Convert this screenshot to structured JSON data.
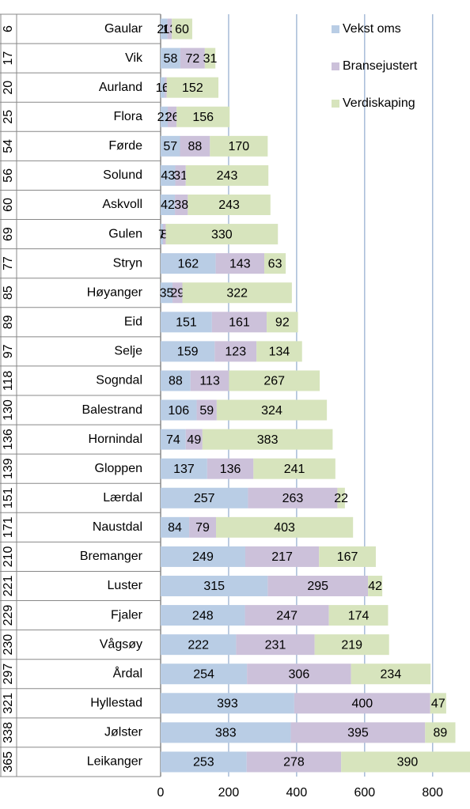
{
  "chart_data": {
    "type": "stacked-bar-horizontal",
    "categories": [
      "Gaular",
      "Vik",
      "Aurland",
      "Flora",
      "Førde",
      "Solund",
      "Askvoll",
      "Gulen",
      "Stryn",
      "Høyanger",
      "Eid",
      "Selje",
      "Sogndal",
      "Balestrand",
      "Hornindal",
      "Gloppen",
      "Lærdal",
      "Naustdal",
      "Bremanger",
      "Luster",
      "Fjaler",
      "Vågsøy",
      "Årdal",
      "Hyllestad",
      "Jølster",
      "Leikanger"
    ],
    "ranks": [
      6,
      17,
      20,
      25,
      54,
      56,
      60,
      69,
      77,
      85,
      89,
      97,
      118,
      130,
      136,
      139,
      151,
      171,
      210,
      221,
      229,
      230,
      297,
      321,
      338,
      365
    ],
    "series": [
      {
        "name": "Vekst oms",
        "color": "#b9cde5",
        "values": [
          20,
          58,
          12,
          21,
          57,
          43,
          42,
          7,
          162,
          35,
          151,
          159,
          88,
          106,
          74,
          137,
          257,
          84,
          249,
          315,
          248,
          222,
          254,
          393,
          383,
          253
        ]
      },
      {
        "name": "Bransejustert",
        "color": "#ccc1da",
        "values": [
          13,
          72,
          6,
          26,
          88,
          31,
          38,
          8,
          143,
          29,
          161,
          123,
          113,
          59,
          49,
          136,
          263,
          79,
          217,
          295,
          247,
          231,
          306,
          400,
          395,
          278
        ]
      },
      {
        "name": "Verdiskaping",
        "color": "#d7e4bd",
        "values": [
          60,
          31,
          152,
          156,
          170,
          243,
          243,
          330,
          63,
          322,
          92,
          134,
          267,
          324,
          383,
          241,
          22,
          403,
          167,
          42,
          174,
          219,
          234,
          47,
          89,
          390
        ]
      }
    ],
    "xlim": [
      0,
      910
    ],
    "xticks": [
      0,
      200,
      400,
      600,
      800
    ],
    "grid": true,
    "legend": "top-right"
  }
}
